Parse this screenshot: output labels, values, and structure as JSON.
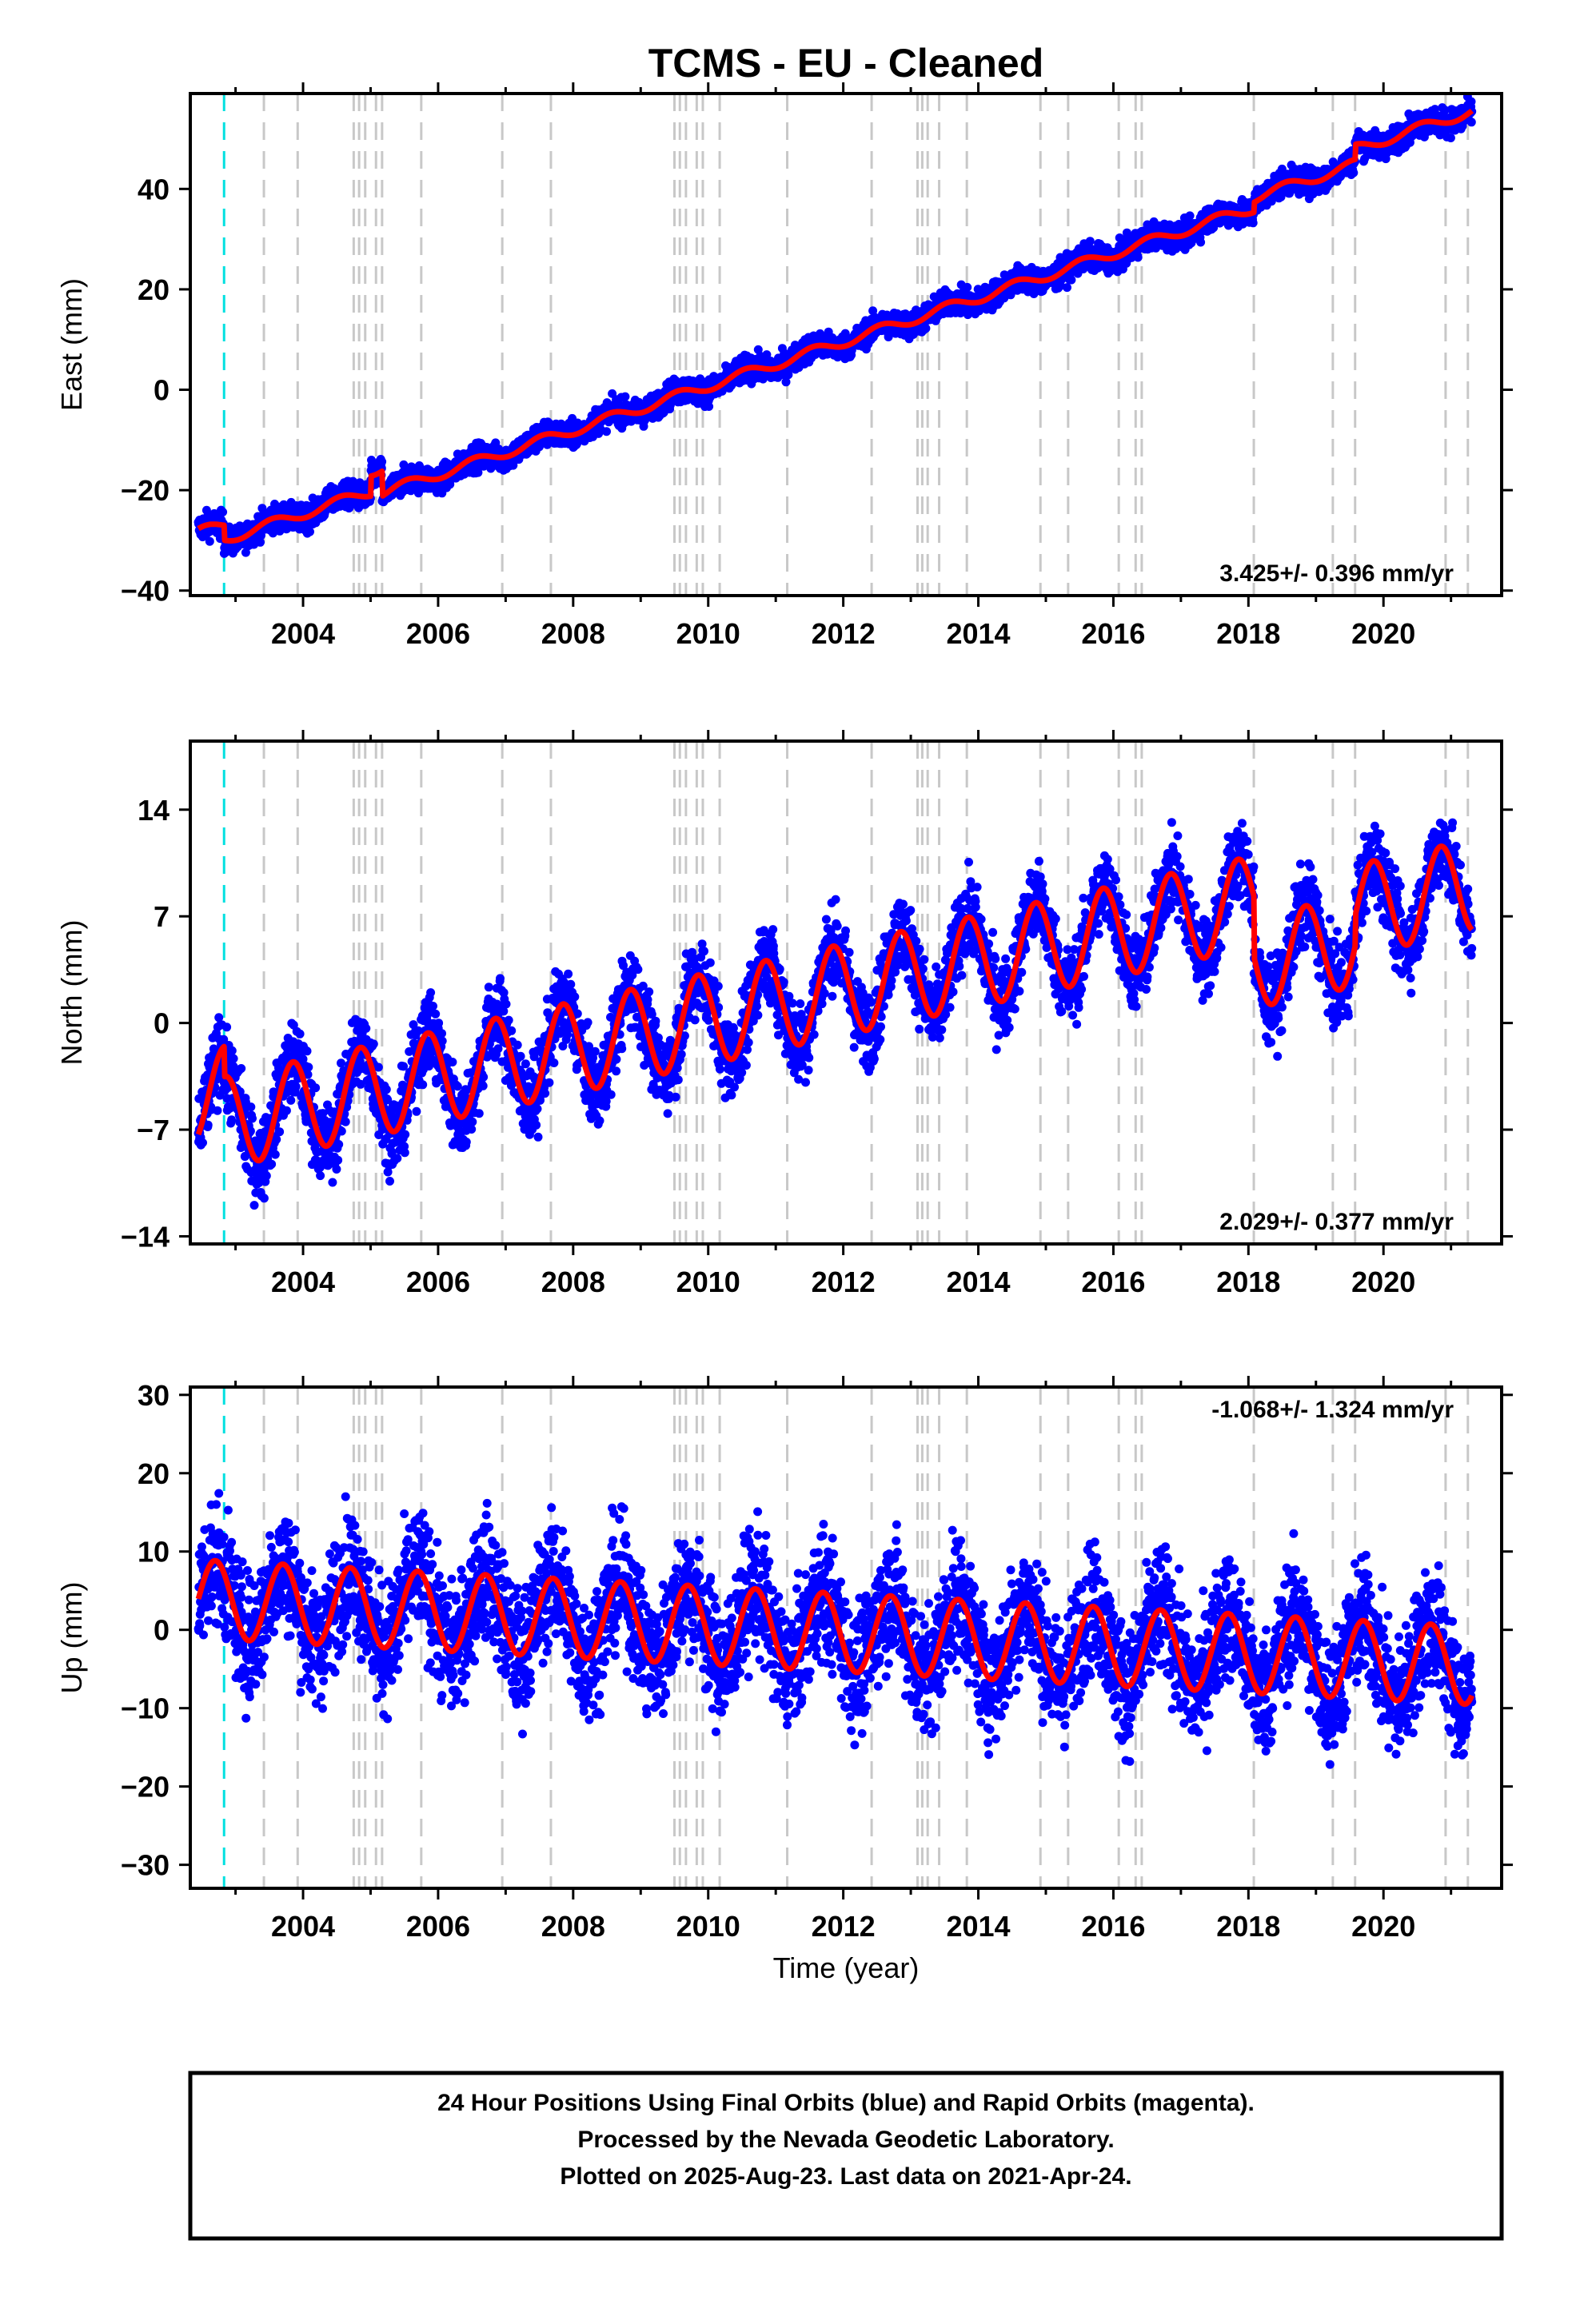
{
  "chart_data": {
    "type": "scatter",
    "title": "TCMS  - EU - Cleaned",
    "xlabel": "Time (year)",
    "xlim": [
      2002.33,
      2021.75
    ],
    "x_ticks": [
      2004,
      2006,
      2008,
      2010,
      2012,
      2014,
      2016,
      2018,
      2020
    ],
    "equipment_change_line": 2002.83,
    "event_lines": [
      2003.42,
      2003.92,
      2004.75,
      2004.83,
      2004.92,
      2005.08,
      2005.17,
      2005.75,
      2006.95,
      2007.67,
      2009.5,
      2009.58,
      2009.67,
      2009.83,
      2009.92,
      2010.17,
      2011.17,
      2012.42,
      2013.1,
      2013.17,
      2013.25,
      2013.42,
      2013.83,
      2014.92,
      2015.33,
      2016.08,
      2016.33,
      2016.42,
      2018.08,
      2019.25,
      2019.58,
      2020.92,
      2021.25
    ],
    "panels": [
      {
        "ylabel": "East (mm)",
        "ylim": [
          -41,
          59
        ],
        "y_ticks": [
          -40,
          -20,
          0,
          20,
          40
        ],
        "rate": "3.425+/- 0.396 mm/yr",
        "rate_position": "bottom-right",
        "model": {
          "start": -29,
          "trend": 4.4,
          "annual": 1.0,
          "phase": 0.3,
          "offsets": [
            [
              2002.83,
              -3
            ],
            [
              2005.0,
              4
            ],
            [
              2005.17,
              -5
            ],
            [
              2018.08,
              2
            ],
            [
              2019.58,
              3
            ]
          ]
        },
        "noise": 1.3
      },
      {
        "ylabel": "North (mm)",
        "ylim": [
          -14.5,
          18.5
        ],
        "y_ticks": [
          -14,
          -7,
          0,
          7,
          14
        ],
        "rate": "2.029+/- 0.377 mm/yr",
        "rate_position": "bottom-right",
        "model": {
          "start": -5,
          "trend": 0.95,
          "annual": 3.0,
          "phase": 0.6,
          "offsets": [
            [
              2002.83,
              -2
            ],
            [
              2018.08,
              -4
            ],
            [
              2019.58,
              2
            ]
          ]
        },
        "noise": 1.3
      },
      {
        "ylabel": "Up (mm)",
        "ylim": [
          -33,
          31
        ],
        "y_ticks": [
          -30,
          -20,
          -10,
          0,
          10,
          20,
          30
        ],
        "rate": "-1.068+/- 1.324 mm/yr",
        "rate_position": "top-right",
        "model": {
          "start": 4,
          "trend": -0.45,
          "annual": 5.0,
          "phase": 0.45,
          "offsets": []
        },
        "noise": 4.0
      }
    ],
    "series": [
      {
        "name": "24 Hour Positions (Final Orbits)",
        "color": "#0000ff",
        "style": "points"
      },
      {
        "name": "model fit",
        "color": "#ff0000",
        "style": "line"
      }
    ]
  },
  "caption": {
    "line1": "24 Hour Positions Using Final Orbits (blue) and Rapid Orbits (magenta).",
    "line2": "Processed by the Nevada Geodetic Laboratory.",
    "line3": "Plotted on 2025-Aug-23. Last data on 2021-Apr-24."
  },
  "colors": {
    "data": "#0000ff",
    "model": "#ff0000",
    "event_line": "#c8c8c8",
    "equipment_line": "#00e0e0",
    "frame": "#000000"
  }
}
